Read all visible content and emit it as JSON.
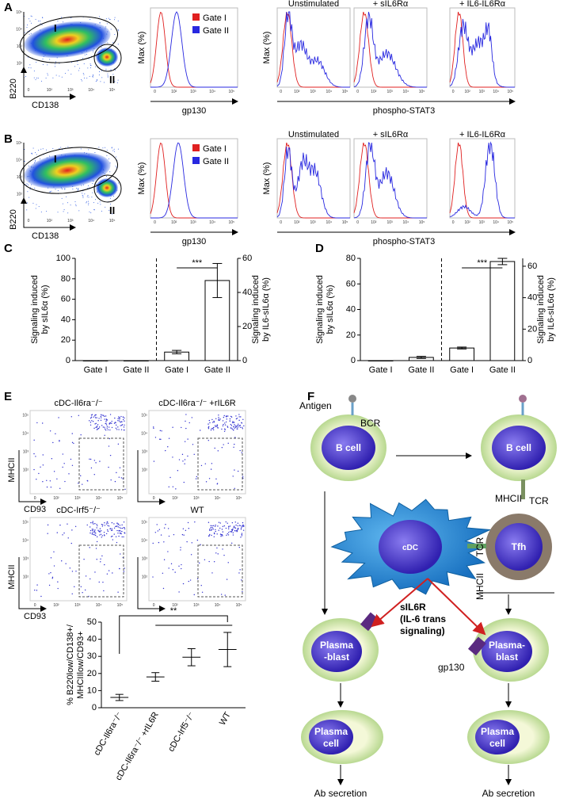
{
  "labels": [
    "A",
    "B",
    "C",
    "D",
    "E",
    "F"
  ],
  "flow": {
    "gates": [
      "I",
      "II"
    ],
    "y_axis": "B220",
    "x_axis": "CD138",
    "legend": [
      "Gate I",
      "Gate II"
    ],
    "legend_colors": [
      "#e02020",
      "#2828e0"
    ],
    "max_label": "Max (%)",
    "gp130": "gp130",
    "pstat": "phospho-STAT3",
    "conditions": [
      "Unstimulated",
      "+ sIL6Rα",
      "+ IL6-IL6Rα"
    ],
    "ticks": [
      "0",
      "10²",
      "10³",
      "10⁴",
      "10⁵"
    ]
  },
  "dotplots": {
    "titles": [
      "cDC-Il6ra⁻/⁻",
      "cDC-Il6ra⁻/⁻ +rIL6R",
      "cDC-Irf5⁻/⁻",
      "WT"
    ],
    "y_axis": "MHCII",
    "x_axis": "CD93"
  },
  "chart_data": [
    {
      "type": "bar",
      "categories": [
        "Gate I",
        "Gate II",
        "Gate I",
        "Gate II"
      ],
      "ylabel": [
        "Signaling induced",
        "by sIL6α (%)"
      ],
      "y2label": [
        "Signaling induced",
        "by IL6-sIL6α (%)"
      ],
      "ylim": [
        0,
        100
      ],
      "yticks": [
        0,
        20,
        40,
        60,
        80,
        100
      ],
      "y2lim": [
        0,
        60
      ],
      "y2ticks": [
        0,
        20,
        40,
        60
      ],
      "series": [
        {
          "color": "#ffffff",
          "values": [
            0,
            0,
            null,
            null
          ]
        },
        {
          "color": "#ffffff",
          "axis": "y2",
          "values": [
            null,
            null,
            5,
            47
          ],
          "errors": [
            null,
            null,
            1,
            10
          ]
        }
      ],
      "divider": true,
      "annotations": [
        "***"
      ]
    },
    {
      "type": "bar",
      "categories": [
        "Gate I",
        "Gate II",
        "Gate I",
        "Gate II"
      ],
      "ylabel": [
        "Signaling induced",
        "by sIL6α (%)"
      ],
      "y2label": [
        "Signaling induced",
        "by IL6-sIL6α (%)"
      ],
      "ylim": [
        0,
        80
      ],
      "yticks": [
        0,
        20,
        40,
        60,
        80
      ],
      "y2lim": [
        0,
        65
      ],
      "y2ticks": [
        0,
        20,
        40,
        60
      ],
      "series": [
        {
          "color": "#ffffff",
          "values": [
            0,
            2.5,
            null,
            null
          ],
          "errors": [
            null,
            0.8,
            null,
            null
          ]
        },
        {
          "color": "#ffffff",
          "axis": "y2",
          "values": [
            null,
            null,
            8,
            63
          ],
          "errors": [
            null,
            null,
            0.6,
            2
          ]
        }
      ],
      "divider": true,
      "annotations": [
        "***"
      ]
    },
    {
      "type": "dot",
      "categories": [
        "cDC-Il6ra⁻/⁻",
        "cDC-Il6ra⁻/⁻ +rIL6R",
        "cDC-Irf5⁻/⁻",
        "WT"
      ],
      "ylabel": [
        "% B220low/CD138+/",
        "MHCIIlow/CD93+"
      ],
      "values": [
        6,
        18,
        29.5,
        34
      ],
      "errors": [
        1.8,
        2.5,
        5,
        10
      ],
      "color": "#000000",
      "ylim": [
        0,
        50
      ],
      "yticks": [
        0,
        10,
        20,
        30,
        40,
        50
      ],
      "annotations": [
        "**"
      ]
    }
  ],
  "diagram": {
    "antigen": "Antigen",
    "bcr": "BCR",
    "b_cell": "B cell",
    "mhcii": "MHCII",
    "tcr": "TCR",
    "tfh": "Tfh",
    "cdc": "cDC",
    "sil6r": [
      "sIL6R",
      "(IL-6 trans",
      "signaling)"
    ],
    "gp130": "gp130",
    "plasmablast_left": [
      "Plasma",
      "-blast"
    ],
    "plasmablast_right": [
      "Plasma-",
      "blast"
    ],
    "plasma_cell": [
      "Plasma",
      "cell"
    ],
    "ab_secretion": "Ab secretion"
  }
}
